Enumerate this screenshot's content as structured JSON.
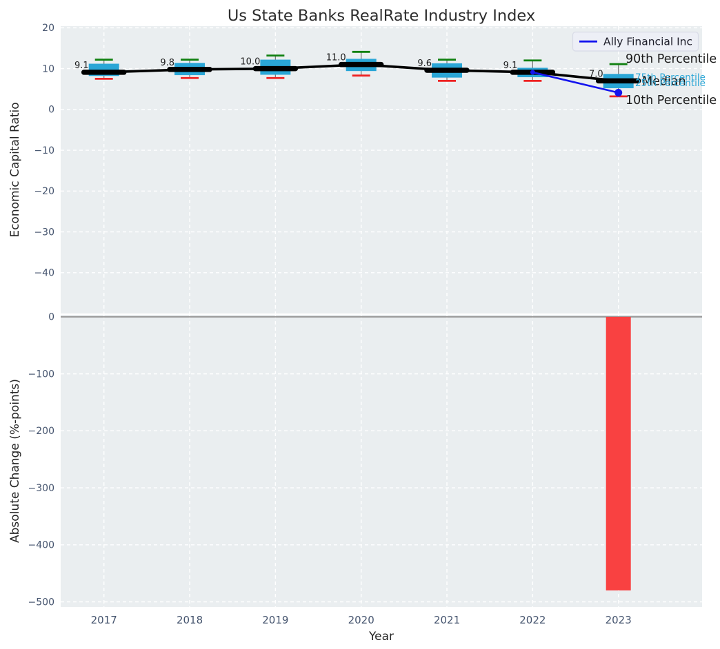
{
  "title": "Us State Banks RealRate Industry Index",
  "colors": {
    "plot_bg": "#eaeef0",
    "grid": "#ffffff",
    "box_fill": "#2aa6d6",
    "whisker": "#7a7a7a",
    "cap_high_green": "#108010",
    "cap_low_red": "#ee2222",
    "median_black": "#000000",
    "ally_blue": "#1414ee",
    "bar_red": "#f94141",
    "zero_line_gray": "#999999",
    "tick_label": "#45546e",
    "axis_label": "#262626",
    "title_color": "#2d2d2d",
    "annotation_cyan": "#2aa6d6",
    "annotation_dark": "#1a1a1a",
    "legend_bg": "#edeff6",
    "legend_border": "#d8dbe6"
  },
  "chart_data": {
    "type": "box",
    "title": "Us State Banks RealRate Industry Index",
    "xlabel": "Year",
    "categories": [
      "2017",
      "2018",
      "2019",
      "2020",
      "2021",
      "2022",
      "2023"
    ],
    "legend": {
      "label": "Ally Financial Inc",
      "position": "upper-right"
    },
    "panels": [
      {
        "name": "economic-capital-ratio",
        "ylabel": "Economic Capital Ratio",
        "ylim": [
          -50,
          20.4
        ],
        "yticks": [
          20,
          10,
          0,
          -10,
          -20,
          -30,
          -40
        ],
        "grid": true,
        "box_stats": [
          {
            "year": "2017",
            "p90": 12.2,
            "p75": 11.2,
            "median": 9.1,
            "p25": 8.2,
            "p10": 7.5,
            "label": "9.1"
          },
          {
            "year": "2018",
            "p90": 12.2,
            "p75": 11.4,
            "median": 9.8,
            "p25": 8.4,
            "p10": 7.7,
            "label": "9.8"
          },
          {
            "year": "2019",
            "p90": 13.2,
            "p75": 12.2,
            "median": 10.0,
            "p25": 8.5,
            "p10": 7.7,
            "label": "10.0"
          },
          {
            "year": "2020",
            "p90": 14.1,
            "p75": 12.4,
            "median": 11.0,
            "p25": 9.4,
            "p10": 8.3,
            "label": "11.0"
          },
          {
            "year": "2021",
            "p90": 12.2,
            "p75": 11.3,
            "median": 9.6,
            "p25": 7.8,
            "p10": 7.0,
            "label": "9.6"
          },
          {
            "year": "2022",
            "p90": 12.0,
            "p75": 10.2,
            "median": 9.1,
            "p25": 7.9,
            "p10": 7.0,
            "label": "9.1"
          },
          {
            "year": "2023",
            "p90": 11.1,
            "p75": 8.7,
            "median": 7.0,
            "p25": 5.2,
            "p10": 3.2,
            "label": "7.0"
          }
        ],
        "series": [
          {
            "name": "Ally Financial Inc",
            "x": [
              "2022",
              "2023"
            ],
            "values": [
              9.1,
              4.1
            ]
          }
        ],
        "annotations": [
          {
            "text": "90th Percentile",
            "ref": "p90",
            "color": "#1a1a1a",
            "size": "large"
          },
          {
            "text": "75th Percentile",
            "ref": "p75",
            "color": "#2aa6d6",
            "size": "small"
          },
          {
            "text": "Median",
            "ref": "median",
            "color": "#1a1a1a",
            "size": "large"
          },
          {
            "text": "25th Percentile",
            "ref": "p25",
            "color": "#2aa6d6",
            "size": "small"
          },
          {
            "text": "10th Percentile",
            "ref": "p10",
            "color": "#1a1a1a",
            "size": "large"
          }
        ]
      },
      {
        "name": "absolute-change",
        "ylabel": "Absolute Change (%-points)",
        "ylim": [
          -509,
          3.5
        ],
        "yticks": [
          0,
          -100,
          -200,
          -300,
          -400,
          -500
        ],
        "grid": true,
        "bars": [
          {
            "year": "2023",
            "value": -480
          }
        ]
      }
    ]
  }
}
